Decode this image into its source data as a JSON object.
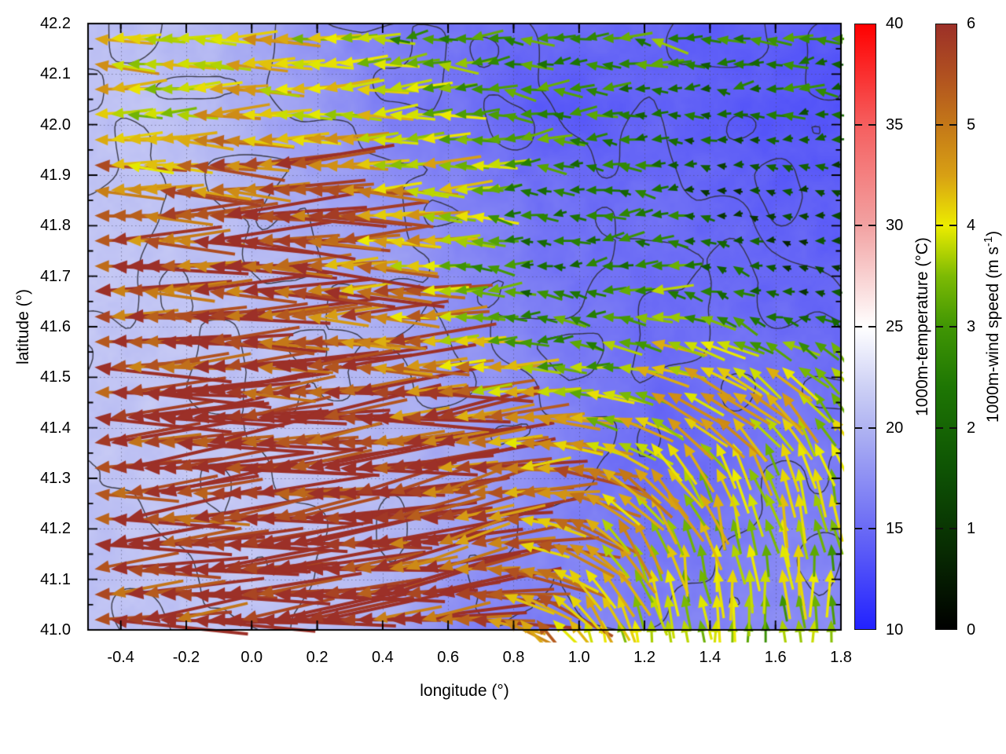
{
  "figure": {
    "background": "#ffffff",
    "plot": {
      "x_axis": {
        "label": "longitude (°)",
        "min": -0.5,
        "max": 1.8,
        "major_ticks": [
          {
            "v": -0.4,
            "label": "-0.4"
          },
          {
            "v": -0.2,
            "label": "-0.2"
          },
          {
            "v": 0.0,
            "label": "0.0"
          },
          {
            "v": 0.2,
            "label": "0.2"
          },
          {
            "v": 0.4,
            "label": "0.4"
          },
          {
            "v": 0.6,
            "label": "0.6"
          },
          {
            "v": 0.8,
            "label": "0.8"
          },
          {
            "v": 1.0,
            "label": "1.0"
          },
          {
            "v": 1.2,
            "label": "1.2"
          },
          {
            "v": 1.4,
            "label": "1.4"
          },
          {
            "v": 1.6,
            "label": "1.6"
          },
          {
            "v": 1.8,
            "label": "1.8"
          }
        ],
        "minor_tick_step": 0.1
      },
      "y_axis": {
        "label": "latitude (°)",
        "min": 41.0,
        "max": 42.2,
        "major_ticks": [
          {
            "v": 41.0,
            "label": "41.0"
          },
          {
            "v": 41.1,
            "label": "41.1"
          },
          {
            "v": 41.2,
            "label": "41.2"
          },
          {
            "v": 41.3,
            "label": "41.3"
          },
          {
            "v": 41.4,
            "label": "41.4"
          },
          {
            "v": 41.5,
            "label": "41.5"
          },
          {
            "v": 41.6,
            "label": "41.6"
          },
          {
            "v": 41.7,
            "label": "41.7"
          },
          {
            "v": 41.8,
            "label": "41.8"
          },
          {
            "v": 41.9,
            "label": "41.9"
          },
          {
            "v": 42.0,
            "label": "42.0"
          },
          {
            "v": 42.1,
            "label": "42.1"
          },
          {
            "v": 42.2,
            "label": "42.2"
          }
        ],
        "minor_tick_step": 0.05
      },
      "grid_style": "dotted"
    },
    "colorbars": [
      {
        "id": "temperature",
        "title": "1000m-temperature (°C)",
        "min": 10,
        "max": 40,
        "ticks": [
          {
            "v": 10,
            "label": "10"
          },
          {
            "v": 15,
            "label": "15"
          },
          {
            "v": 20,
            "label": "20"
          },
          {
            "v": 25,
            "label": "25"
          },
          {
            "v": 30,
            "label": "30"
          },
          {
            "v": 35,
            "label": "35"
          },
          {
            "v": 40,
            "label": "40"
          }
        ],
        "stops": [
          {
            "v": 10,
            "c": "#2222ff"
          },
          {
            "v": 15,
            "c": "#6b6bf5"
          },
          {
            "v": 20,
            "c": "#b0b4f2"
          },
          {
            "v": 22,
            "c": "#cdd0f5"
          },
          {
            "v": 25,
            "c": "#ffffff"
          },
          {
            "v": 30,
            "c": "#f2a2a2"
          },
          {
            "v": 35,
            "c": "#f55f5f"
          },
          {
            "v": 40,
            "c": "#ff0000"
          }
        ]
      },
      {
        "id": "wind",
        "title_main": "1000m-wind speed (m s",
        "title_sup": "-1",
        "title_end": ")",
        "min": 0,
        "max": 6,
        "ticks": [
          {
            "v": 0,
            "label": "0"
          },
          {
            "v": 1,
            "label": "1"
          },
          {
            "v": 2,
            "label": "2"
          },
          {
            "v": 3,
            "label": "3"
          },
          {
            "v": 4,
            "label": "4"
          },
          {
            "v": 5,
            "label": "5"
          },
          {
            "v": 6,
            "label": "6"
          }
        ],
        "stops": [
          {
            "v": 0,
            "c": "#000000"
          },
          {
            "v": 0.8,
            "c": "#082c02"
          },
          {
            "v": 1.6,
            "c": "#0e5404"
          },
          {
            "v": 2.4,
            "c": "#1e7604"
          },
          {
            "v": 3.0,
            "c": "#409604"
          },
          {
            "v": 3.5,
            "c": "#7cba04"
          },
          {
            "v": 4.0,
            "c": "#ecec00"
          },
          {
            "v": 4.5,
            "c": "#d8a014"
          },
          {
            "v": 5.0,
            "c": "#c47818"
          },
          {
            "v": 5.5,
            "c": "#b05020"
          },
          {
            "v": 6,
            "c": "#9c3028"
          }
        ]
      }
    ]
  },
  "chart_data": {
    "type": "heatmap",
    "overlay_types": [
      "quiver",
      "contour"
    ],
    "title": "",
    "xlabel": "longitude (°)",
    "ylabel": "latitude (°)",
    "xlim": [
      -0.5,
      1.8
    ],
    "ylim": [
      41.0,
      42.2
    ],
    "grid": "dotted",
    "temperature_field": {
      "units": "°C",
      "range": [
        10,
        40
      ],
      "grid_lon": [
        -0.5,
        -0.31,
        -0.12,
        0.07,
        0.27,
        0.46,
        0.65,
        0.84,
        1.03,
        1.23,
        1.42,
        1.61,
        1.8
      ],
      "grid_lat": [
        42.2,
        42.03,
        41.86,
        41.69,
        41.51,
        41.34,
        41.17,
        41.0
      ],
      "values": [
        [
          20.6,
          20.6,
          20.1,
          18.6,
          17.2,
          16.2,
          15.6,
          15.1,
          15.0,
          14.6,
          14.1,
          14.1,
          13.6
        ],
        [
          20.9,
          20.9,
          20.4,
          19.1,
          17.6,
          16.1,
          15.6,
          14.1,
          13.9,
          14.6,
          14.1,
          13.6,
          13.6
        ],
        [
          21.0,
          21.0,
          20.6,
          19.6,
          18.6,
          17.6,
          16.6,
          15.6,
          15.1,
          15.1,
          14.6,
          14.1,
          14.1
        ],
        [
          21.1,
          21.2,
          21.0,
          20.6,
          19.6,
          18.6,
          17.1,
          16.1,
          15.6,
          15.1,
          15.1,
          14.6,
          14.6
        ],
        [
          21.2,
          21.2,
          21.1,
          20.9,
          20.6,
          19.6,
          18.1,
          17.1,
          16.1,
          15.1,
          15.6,
          15.6,
          15.1
        ],
        [
          21.1,
          21.2,
          21.2,
          21.1,
          20.9,
          20.1,
          19.1,
          17.6,
          15.9,
          14.6,
          15.1,
          16.1,
          16.1
        ],
        [
          21.0,
          21.1,
          21.2,
          21.1,
          20.9,
          20.1,
          18.6,
          17.1,
          16.6,
          15.6,
          16.1,
          16.6,
          16.6
        ],
        [
          20.9,
          21.0,
          21.1,
          20.9,
          20.6,
          19.1,
          16.6,
          16.1,
          16.6,
          16.6,
          16.6,
          17.1,
          17.1
        ]
      ]
    },
    "wind_field": {
      "units": "m s⁻¹",
      "range": [
        0,
        6
      ],
      "arrow_spacing_deg": 0.05,
      "grid_lon": [
        -0.5,
        -0.31,
        -0.12,
        0.07,
        0.27,
        0.46,
        0.65,
        0.84,
        1.03,
        1.23,
        1.42,
        1.61,
        1.8
      ],
      "grid_lat": [
        42.2,
        42.03,
        41.86,
        41.69,
        41.51,
        41.34,
        41.17,
        41.0
      ],
      "speed": [
        [
          4.3,
          4.0,
          4.4,
          3.9,
          3.2,
          2.8,
          3.0,
          2.8,
          2.7,
          3.2,
          2.6,
          3.0,
          2.8
        ],
        [
          4.1,
          3.9,
          4.3,
          4.4,
          3.9,
          3.6,
          3.3,
          3.1,
          2.6,
          2.2,
          1.8,
          2.2,
          1.8
        ],
        [
          5.4,
          5.0,
          5.3,
          5.5,
          4.6,
          4.3,
          3.6,
          2.7,
          2.4,
          2.0,
          1.4,
          1.0,
          1.3
        ],
        [
          5.8,
          5.6,
          5.3,
          5.6,
          5.1,
          4.6,
          3.1,
          2.2,
          2.6,
          3.1,
          2.2,
          1.2,
          1.0
        ],
        [
          5.6,
          5.9,
          6.0,
          5.8,
          5.6,
          5.3,
          4.6,
          3.6,
          3.2,
          4.2,
          4.3,
          4.0,
          3.8
        ],
        [
          6.0,
          6.0,
          5.8,
          6.0,
          5.8,
          5.6,
          5.1,
          4.9,
          4.6,
          4.2,
          4.0,
          3.9,
          3.6
        ],
        [
          5.9,
          6.0,
          6.0,
          5.8,
          6.0,
          5.6,
          5.3,
          4.9,
          4.3,
          3.9,
          3.6,
          3.9,
          3.4
        ],
        [
          6.0,
          5.9,
          6.0,
          6.0,
          5.8,
          5.6,
          5.1,
          4.6,
          4.1,
          3.9,
          3.6,
          3.3,
          3.1
        ]
      ],
      "direction_deg": [
        [
          180,
          180,
          180,
          180,
          185,
          190,
          185,
          180,
          178,
          176,
          180,
          184,
          180
        ],
        [
          180,
          180,
          180,
          180,
          182,
          184,
          182,
          180,
          178,
          175,
          180,
          185,
          180
        ],
        [
          180,
          180,
          180,
          180,
          180,
          180,
          180,
          180,
          180,
          178,
          175,
          172,
          170
        ],
        [
          180,
          180,
          180,
          180,
          180,
          180,
          180,
          180,
          180,
          176,
          170,
          165,
          160
        ],
        [
          182,
          182,
          182,
          182,
          182,
          182,
          180,
          178,
          172,
          160,
          148,
          140,
          135
        ],
        [
          185,
          185,
          186,
          186,
          186,
          188,
          190,
          185,
          160,
          130,
          115,
          110,
          108
        ],
        [
          183,
          184,
          185,
          186,
          188,
          192,
          196,
          170,
          130,
          108,
          98,
          96,
          95
        ],
        [
          182,
          183,
          184,
          185,
          188,
          190,
          175,
          135,
          108,
          96,
          92,
          90,
          90
        ]
      ]
    },
    "terrain_contours": {
      "levels": [
        1.0,
        1.8,
        2.6,
        3.3
      ],
      "grid_lon": [
        -0.5,
        -0.29,
        -0.08,
        0.13,
        0.34,
        0.55,
        0.76,
        0.97,
        1.18,
        1.39,
        1.6,
        1.8
      ],
      "grid_lat": [
        42.2,
        42.03,
        41.86,
        41.69,
        41.51,
        41.34,
        41.17,
        41.0
      ],
      "values": [
        [
          1.2,
          0.8,
          1.5,
          2.0,
          1.4,
          2.2,
          2.6,
          2.0,
          1.5,
          1.8,
          1.2,
          0.8
        ],
        [
          0.8,
          1.4,
          1.0,
          1.8,
          2.4,
          1.8,
          2.8,
          2.2,
          1.8,
          1.2,
          1.6,
          1.0
        ],
        [
          1.5,
          0.9,
          1.6,
          1.2,
          1.8,
          2.6,
          2.0,
          2.8,
          2.4,
          1.6,
          1.0,
          1.4
        ],
        [
          0.7,
          1.6,
          1.1,
          1.7,
          1.3,
          2.2,
          3.0,
          2.4,
          2.9,
          2.0,
          2.6,
          1.8
        ],
        [
          1.4,
          1.0,
          1.8,
          1.2,
          2.0,
          1.6,
          2.4,
          3.1,
          2.2,
          3.0,
          2.4,
          2.8
        ],
        [
          0.9,
          1.5,
          1.1,
          1.9,
          1.5,
          2.3,
          2.9,
          2.5,
          3.2,
          2.6,
          3.0,
          2.2
        ],
        [
          1.3,
          0.8,
          1.7,
          1.3,
          2.1,
          2.7,
          2.2,
          3.0,
          2.4,
          2.8,
          2.2,
          2.6
        ],
        [
          0.8,
          1.4,
          1.0,
          1.8,
          2.4,
          2.0,
          2.8,
          2.3,
          2.7,
          2.1,
          2.5,
          1.9
        ]
      ]
    }
  }
}
